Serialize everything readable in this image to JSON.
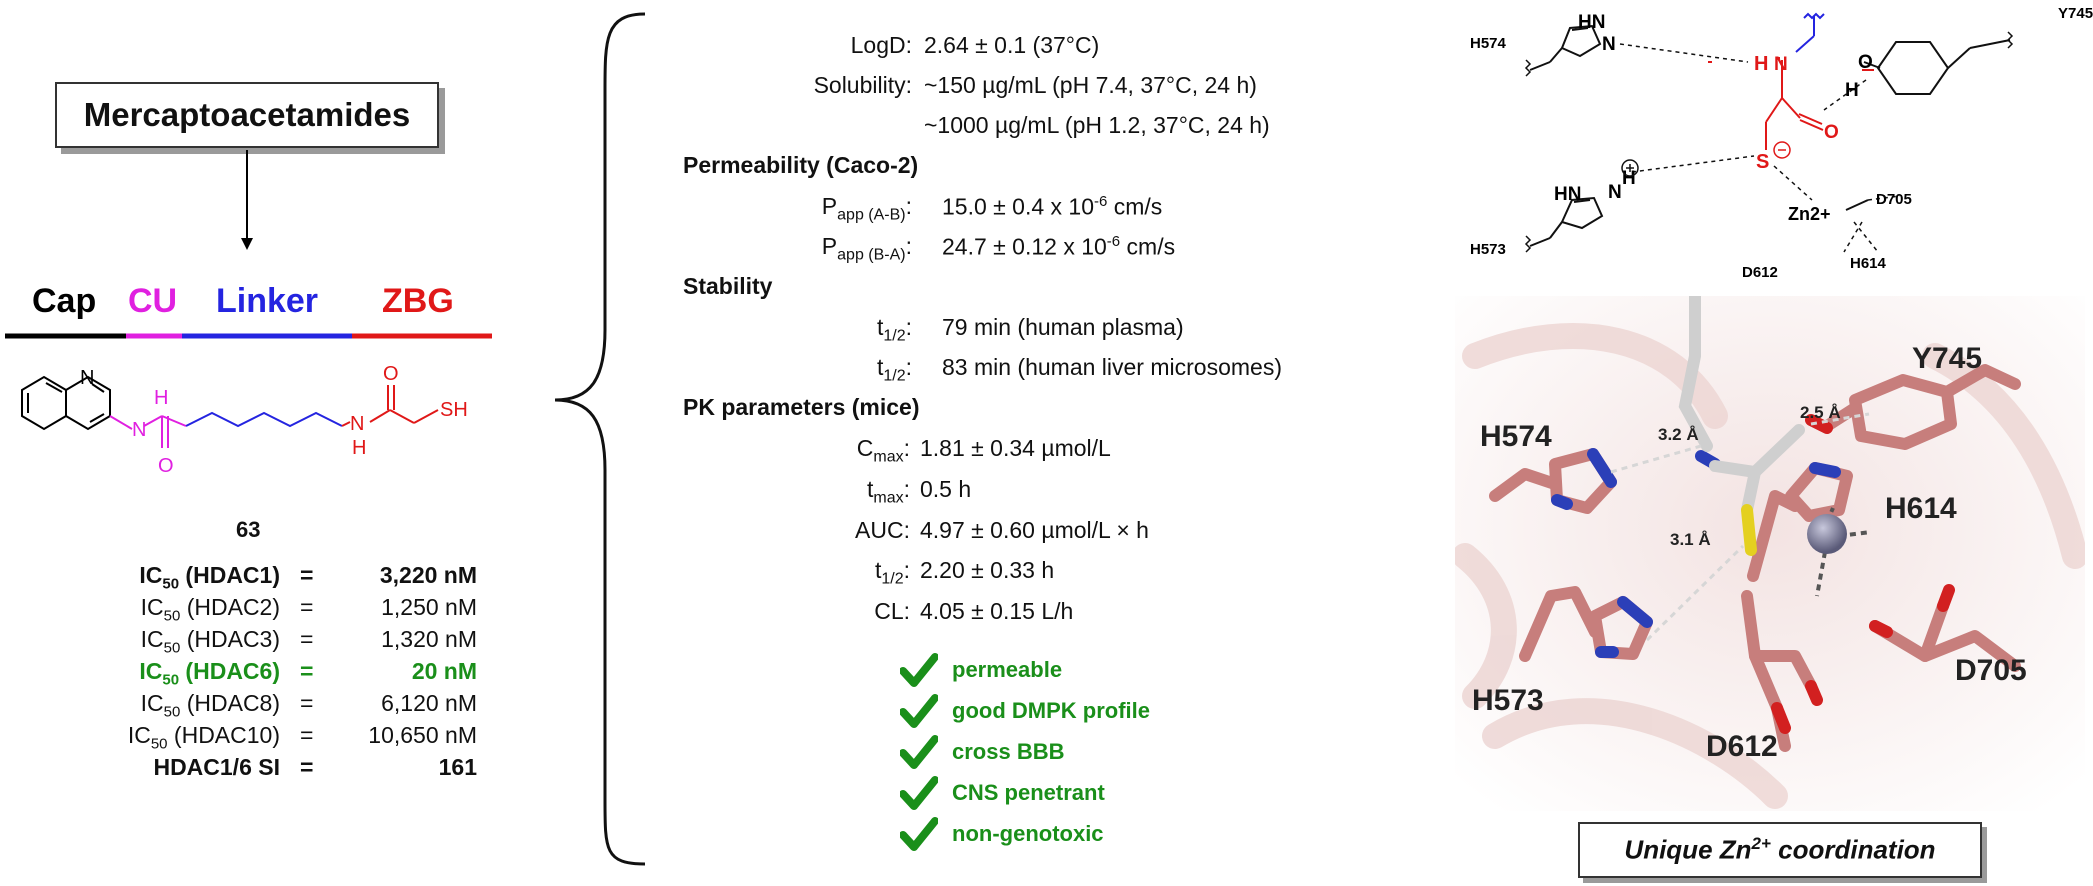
{
  "left": {
    "title": "Mercaptoacetamides",
    "segments": {
      "cap": "Cap",
      "cu": "CU",
      "linker": "Linker",
      "zbg": "ZBG"
    },
    "structure_atoms": {
      "n_ring": "N",
      "nh1": "H",
      "n1": "N",
      "o1": "O",
      "nh2": "N",
      "h2": "H",
      "o2": "O",
      "sh": "SH"
    },
    "compound_number": "63",
    "ic50_rows": [
      {
        "label": "IC50 (HDAC1)",
        "eq": "=",
        "value": "3,220 nM"
      },
      {
        "label": "IC50 (HDAC2)",
        "eq": "=",
        "value": "1,250 nM"
      },
      {
        "label": "IC50 (HDAC3)",
        "eq": "=",
        "value": "1,320 nM"
      },
      {
        "label": "IC50 (HDAC6)",
        "eq": "=",
        "value": "20 nM"
      },
      {
        "label": "IC50 (HDAC8)",
        "eq": "=",
        "value": "6,120 nM"
      },
      {
        "label": "IC50 (HDAC10)",
        "eq": "=",
        "value": "10,650 nM"
      },
      {
        "label": "HDAC1/6 SI",
        "eq": "=",
        "value": "161"
      }
    ],
    "colors": {
      "cap": "#000000",
      "cu": "#e020e0",
      "linker": "#2424e0",
      "zbg": "#e01818",
      "highlight": "#1a8f1a"
    }
  },
  "middle": {
    "logd": {
      "label": "LogD:",
      "value": "2.64 ± 0.1  (37°C)"
    },
    "solubility": {
      "label": "Solubility:",
      "value1": "~150 µg/mL (pH 7.4, 37°C, 24 h)",
      "value2": "~1000 µg/mL (pH 1.2, 37°C, 24 h)"
    },
    "permeability": {
      "heading": "Permeability (Caco-2)",
      "rows": [
        {
          "label": "Papp (A-B):",
          "value": "15.0 ± 0.4 x 10-6 cm/s"
        },
        {
          "label": "Papp (B-A):",
          "value": "24.7 ± 0.12 x 10-6 cm/s"
        }
      ]
    },
    "stability": {
      "heading": "Stability",
      "rows": [
        {
          "label": "t1/2:",
          "value": "79 min (human plasma)"
        },
        {
          "label": "t1/2:",
          "value": "83 min (human liver microsomes)"
        }
      ]
    },
    "pk": {
      "heading": "PK parameters (mice)",
      "rows": [
        {
          "label": "Cmax:",
          "value": "1.81 ± 0.34 µmol/L"
        },
        {
          "label": "tmax:",
          "value": "0.5 h"
        },
        {
          "label": "AUC:",
          "value": "4.97 ± 0.60 µmol/L × h"
        },
        {
          "label": "t1/2:",
          "value": "2.20 ± 0.33 h"
        },
        {
          "label": "CL:",
          "value": "4.05 ± 0.15 L/h"
        }
      ]
    },
    "checks": [
      "permeable",
      "good DMPK profile",
      "cross BBB",
      "CNS penetrant",
      "non-genotoxic"
    ]
  },
  "right": {
    "scheme_labels": {
      "h574": "H574",
      "h573": "H573",
      "y745": "Y745",
      "d705": "D705",
      "d612": "D612",
      "h614": "H614",
      "zn": "Zn2+",
      "s": "S",
      "hn1": "HN",
      "hn2": "HN",
      "n1": "N",
      "n2": "N",
      "h_a": "H",
      "h_b": "H",
      "h_c": "H",
      "o_phenol": "O",
      "nh": "N",
      "o_amide": "O"
    },
    "render_labels": {
      "h574": "H574",
      "y745": "Y745",
      "h614": "H614",
      "h573": "H573",
      "d612": "D612",
      "d705": "D705",
      "d32": "3.2 Å",
      "d25": "2.5 Å",
      "d31": "3.1 Å"
    },
    "caption": "Unique Zn2+ coordination"
  }
}
